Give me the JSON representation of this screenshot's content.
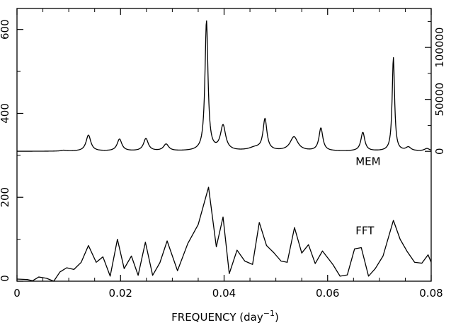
{
  "chart_data": {
    "type": "line",
    "title": "",
    "xlabel": "FREQUENCY (day",
    "xlabel_superscript": "−1",
    "xlabel_suffix": ")",
    "xlim": [
      0,
      0.08
    ],
    "x_ticks": [
      0,
      0.02,
      0.04,
      0.06,
      0.08
    ],
    "x_tick_labels": [
      "0",
      "0.02",
      "0.04",
      "0.06",
      "0.08"
    ],
    "left_axis": {
      "ylim": [
        0,
        650
      ],
      "ticks": [
        0,
        200,
        400,
        600
      ],
      "tick_labels": [
        "0",
        "200",
        "400",
        "600"
      ]
    },
    "right_axis": {
      "ylim": [
        -125000,
        137500
      ],
      "ticks": [
        0,
        50000,
        100000
      ],
      "tick_labels": [
        "0",
        "50000",
        "100000"
      ]
    },
    "grid": false,
    "series": [
      {
        "name": "MEM",
        "axis": "right",
        "render": "lorentzian",
        "baseline": 0,
        "peaks": [
          {
            "f": 0.009,
            "amp": 800,
            "w": 0.0006
          },
          {
            "f": 0.0138,
            "amp": 15500,
            "w": 0.00055
          },
          {
            "f": 0.0198,
            "amp": 11500,
            "w": 0.00055
          },
          {
            "f": 0.0249,
            "amp": 12000,
            "w": 0.00055
          },
          {
            "f": 0.0288,
            "amp": 6500,
            "w": 0.0006
          },
          {
            "f": 0.0366,
            "amp": 125000,
            "w": 0.00035
          },
          {
            "f": 0.0398,
            "amp": 24000,
            "w": 0.0006
          },
          {
            "f": 0.046,
            "amp": 3000,
            "w": 0.0015
          },
          {
            "f": 0.0479,
            "amp": 30000,
            "w": 0.00045
          },
          {
            "f": 0.0535,
            "amp": 13500,
            "w": 0.0009
          },
          {
            "f": 0.0587,
            "amp": 22000,
            "w": 0.00045
          },
          {
            "f": 0.0668,
            "amp": 18000,
            "w": 0.00045
          },
          {
            "f": 0.0727,
            "amp": 90000,
            "w": 0.00028
          },
          {
            "f": 0.0756,
            "amp": 3500,
            "w": 0.0006
          },
          {
            "f": 0.0792,
            "amp": 2500,
            "w": 0.0006
          }
        ]
      },
      {
        "name": "FFT",
        "axis": "left",
        "render": "polyline",
        "x": [
          0.0,
          0.002,
          0.003,
          0.0042,
          0.0057,
          0.0071,
          0.0083,
          0.0096,
          0.011,
          0.0124,
          0.0138,
          0.0153,
          0.0166,
          0.018,
          0.0194,
          0.0207,
          0.0221,
          0.0234,
          0.0248,
          0.0262,
          0.0276,
          0.029,
          0.031,
          0.033,
          0.035,
          0.037,
          0.0385,
          0.0398,
          0.041,
          0.0425,
          0.044,
          0.0455,
          0.0468,
          0.0482,
          0.0496,
          0.051,
          0.0522,
          0.0536,
          0.055,
          0.0563,
          0.0576,
          0.059,
          0.061,
          0.0624,
          0.0638,
          0.0652,
          0.0665,
          0.0679,
          0.0692,
          0.0707,
          0.0727,
          0.074,
          0.0754,
          0.0768,
          0.0782,
          0.0794,
          0.08
        ],
        "y": [
          5,
          4,
          1,
          10,
          7,
          0,
          22,
          32,
          28,
          45,
          85,
          45,
          58,
          12,
          100,
          30,
          60,
          14,
          93,
          14,
          44,
          96,
          25,
          90,
          135,
          224,
          82,
          153,
          18,
          74,
          48,
          40,
          140,
          85,
          68,
          48,
          45,
          128,
          67,
          87,
          42,
          72,
          40,
          12,
          15,
          77,
          80,
          12,
          30,
          60,
          145,
          100,
          70,
          45,
          43,
          63,
          45
        ]
      }
    ],
    "annotations": [
      {
        "text": "MEM",
        "x": 0.0654,
        "axis": "left",
        "y": 277
      },
      {
        "text": "FFT",
        "x": 0.0654,
        "axis": "left",
        "y": 112
      }
    ]
  }
}
